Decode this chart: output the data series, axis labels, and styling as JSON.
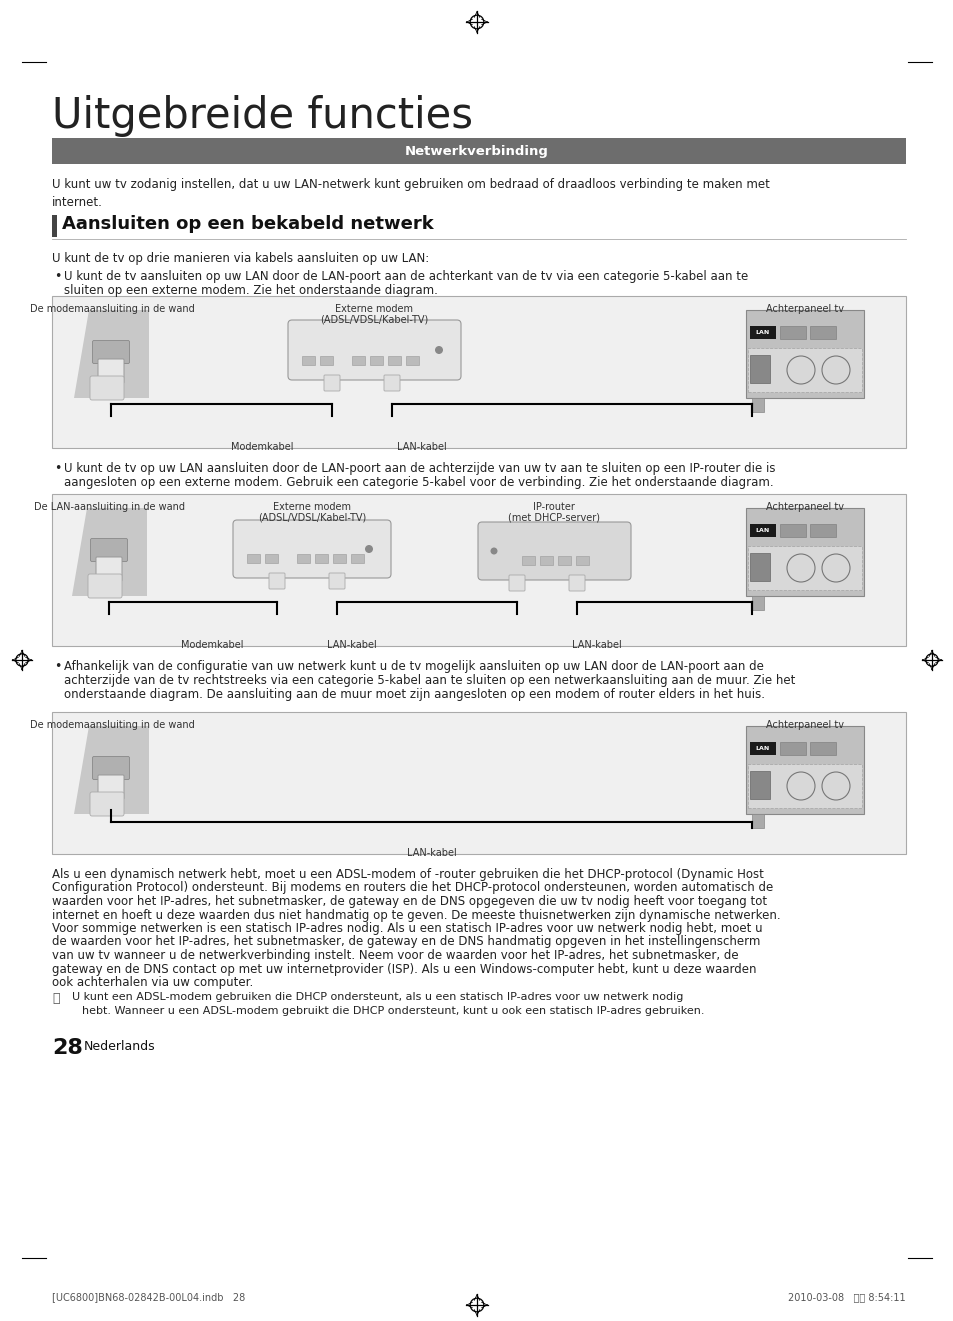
{
  "page_bg": "#ffffff",
  "title": "Uitgebreide functies",
  "section_bar_color": "#6d6d6d",
  "section_bar_text": "Netwerkverbinding",
  "section_bar_text_color": "#ffffff",
  "subsection_title": "Aansluiten op een bekabeld netwerk",
  "subsection_bar_color": "#444444",
  "intro_text": "U kunt uw tv zodanig instellen, dat u uw LAN-netwerk kunt gebruiken om bedraad of draadloos verbinding te maken met\ninternet.",
  "bullet_intro": "U kunt de tv op drie manieren via kabels aansluiten op uw LAN:",
  "bullet1_line1": "U kunt de tv aansluiten op uw LAN door de LAN-poort aan de achterkant van de tv via een categorie 5-kabel aan te",
  "bullet1_line2": "sluiten op een externe modem. Zie het onderstaande diagram.",
  "bullet2_line1": "U kunt de tv op uw LAN aansluiten door de LAN-poort aan de achterzijde van uw tv aan te sluiten op een IP-router die is",
  "bullet2_line2": "aangesloten op een externe modem. Gebruik een categorie 5-kabel voor de verbinding. Zie het onderstaande diagram.",
  "bullet3_line1": "Afhankelijk van de configuratie van uw netwerk kunt u de tv mogelijk aansluiten op uw LAN door de LAN-poort aan de",
  "bullet3_line2": "achterzijde van de tv rechtstreeks via een categorie 5-kabel aan te sluiten op een netwerkaansluiting aan de muur. Zie het",
  "bullet3_line3": "onderstaande diagram. De aansluiting aan de muur moet zijn aangesloten op een modem of router elders in het huis.",
  "body_text_lines": [
    "Als u een dynamisch netwerk hebt, moet u een ADSL-modem of -router gebruiken die het DHCP-protocol (Dynamic Host",
    "Configuration Protocol) ondersteunt. Bij modems en routers die het DHCP-protocol ondersteunen, worden automatisch de",
    "waarden voor het IP-adres, het subnetmasker, de gateway en de DNS opgegeven die uw tv nodig heeft voor toegang tot",
    "internet en hoeft u deze waarden dus niet handmatig op te geven. De meeste thuisnetwerken zijn dynamische netwerken.",
    "Voor sommige netwerken is een statisch IP-adres nodig. Als u een statisch IP-adres voor uw netwerk nodig hebt, moet u",
    "de waarden voor het IP-adres, het subnetmasker, de gateway en de DNS handmatig opgeven in het instellingenscherm",
    "van uw tv wanneer u de netwerkverbinding instelt. Neem voor de waarden voor het IP-adres, het subnetmasker, de",
    "gateway en de DNS contact op met uw internetprovider (ISP). Als u een Windows-computer hebt, kunt u deze waarden",
    "ook achterhalen via uw computer."
  ],
  "note_line1": "U kunt een ADSL-modem gebruiken die DHCP ondersteunt, als u een statisch IP-adres voor uw netwerk nodig",
  "note_line2": "hebt. Wanneer u een ADSL-modem gebruikt die DHCP ondersteunt, kunt u ook een statisch IP-adres gebruiken.",
  "page_num": "28",
  "page_lang": "Nederlands",
  "footer_text": "[UC6800]BN68-02842B-00L04.indb   28",
  "footer_date": "2010-03-08   오후 8:54:11",
  "diagram1_label_wall": "De modemaansluiting in de wand",
  "diagram1_label_modem_line1": "Externe modem",
  "diagram1_label_modem_line2": "(ADSL/VDSL/Kabel-TV)",
  "diagram1_label_tv": "Achterpaneel tv",
  "diagram1_label_modemkabel": "Modemkabel",
  "diagram1_label_lankabel": "LAN-kabel",
  "diagram2_label_wall": "De LAN-aansluiting in de wand",
  "diagram2_label_modem_line1": "Externe modem",
  "diagram2_label_modem_line2": "(ADSL/VDSL/Kabel-TV)",
  "diagram2_label_router_line1": "IP-router",
  "diagram2_label_router_line2": "(met DHCP-server)",
  "diagram2_label_tv": "Achterpaneel tv",
  "diagram2_label_modemkabel": "Modemkabel",
  "diagram2_label_lankabel1": "LAN-kabel",
  "diagram2_label_lankabel2": "LAN-kabel",
  "diagram3_label_wall": "De modemaansluiting in de wand",
  "diagram3_label_tv": "Achterpaneel tv",
  "diagram3_label_lankabel": "LAN-kabel",
  "diagram_bg": "#f0f0f0",
  "diagram_border": "#aaaaaa"
}
